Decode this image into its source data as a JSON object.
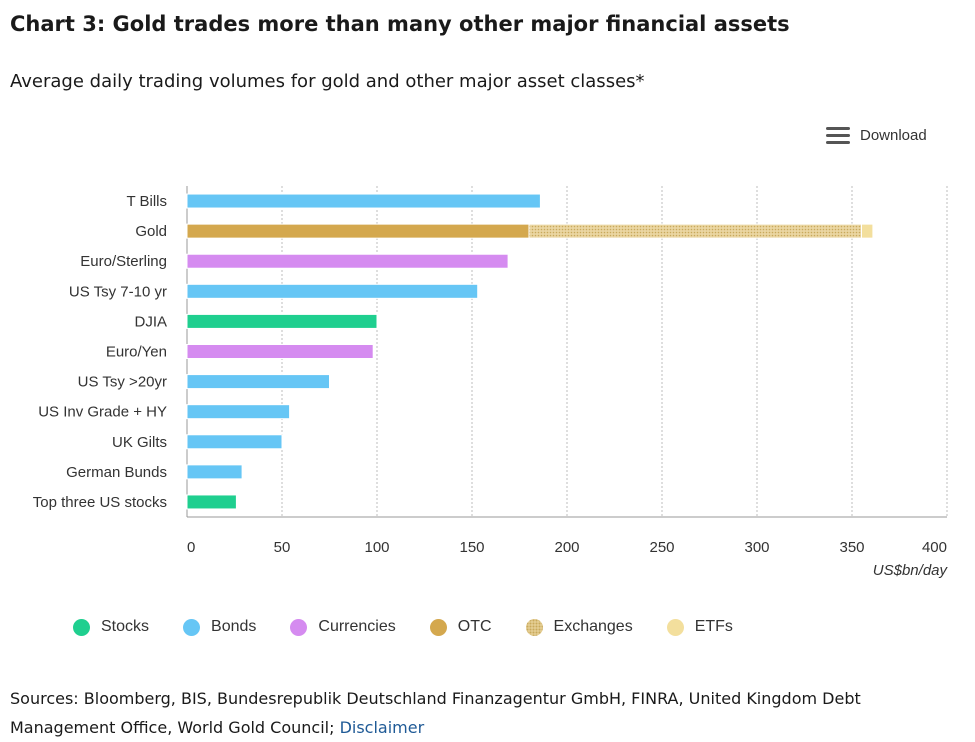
{
  "title": "Chart 3: Gold trades more than many other major financial assets",
  "subtitle": "Average daily trading volumes for gold and other major asset classes*",
  "toolbar": {
    "download_label": "Download",
    "download_icon": "hamburger-menu-icon"
  },
  "colors": {
    "Stocks": "#1fcf8f",
    "Bonds": "#66c6f5",
    "Currencies": "#d58bf0",
    "OTC": "#d4a84e",
    "Exchanges": "#e7d197",
    "ETFs": "#f3df9d",
    "grid": "#bdbdbd",
    "axis": "#999999"
  },
  "chart_data": {
    "type": "bar",
    "orientation": "horizontal",
    "stacked": true,
    "categories": [
      "T Bills",
      "Gold",
      "Euro/Sterling",
      "US Tsy 7-10 yr",
      "DJIA",
      "Euro/Yen",
      "US Tsy >20yr",
      "US Inv Grade + HY",
      "UK Gilts",
      "German Bunds",
      "Top three US stocks"
    ],
    "bar_groups": [
      "Bonds",
      "Gold",
      "Currencies",
      "Bonds",
      "Stocks",
      "Currencies",
      "Bonds",
      "Bonds",
      "Bonds",
      "Bonds",
      "Stocks"
    ],
    "series": [
      {
        "name": "Stocks",
        "values": [
          0,
          0,
          0,
          0,
          100,
          0,
          0,
          0,
          0,
          0,
          26
        ]
      },
      {
        "name": "Bonds",
        "values": [
          186,
          0,
          0,
          153,
          0,
          0,
          75,
          54,
          50,
          29,
          0
        ]
      },
      {
        "name": "Currencies",
        "values": [
          0,
          0,
          169,
          0,
          0,
          98,
          0,
          0,
          0,
          0,
          0
        ]
      },
      {
        "name": "OTC",
        "values": [
          0,
          180,
          0,
          0,
          0,
          0,
          0,
          0,
          0,
          0,
          0
        ]
      },
      {
        "name": "Exchanges",
        "values": [
          0,
          175,
          0,
          0,
          0,
          0,
          0,
          0,
          0,
          0,
          0
        ]
      },
      {
        "name": "ETFs",
        "values": [
          0,
          6,
          0,
          0,
          0,
          0,
          0,
          0,
          0,
          0,
          0
        ]
      }
    ],
    "xlim": [
      0,
      400
    ],
    "xticks": [
      "0",
      "50",
      "100",
      "150",
      "200",
      "250",
      "300",
      "350",
      "400"
    ],
    "xlabel": "US$bn/day",
    "grid": "vertical dotted",
    "legend_position": "bottom",
    "legend": [
      "Stocks",
      "Bonds",
      "Currencies",
      "OTC",
      "Exchanges",
      "ETFs"
    ]
  },
  "sources": {
    "text": "Sources: Bloomberg, BIS, Bundesrepublik Deutschland Finanzagentur GmbH, FINRA, United Kingdom Debt Management Office, World Gold Council; ",
    "disclaimer": "Disclaimer"
  }
}
